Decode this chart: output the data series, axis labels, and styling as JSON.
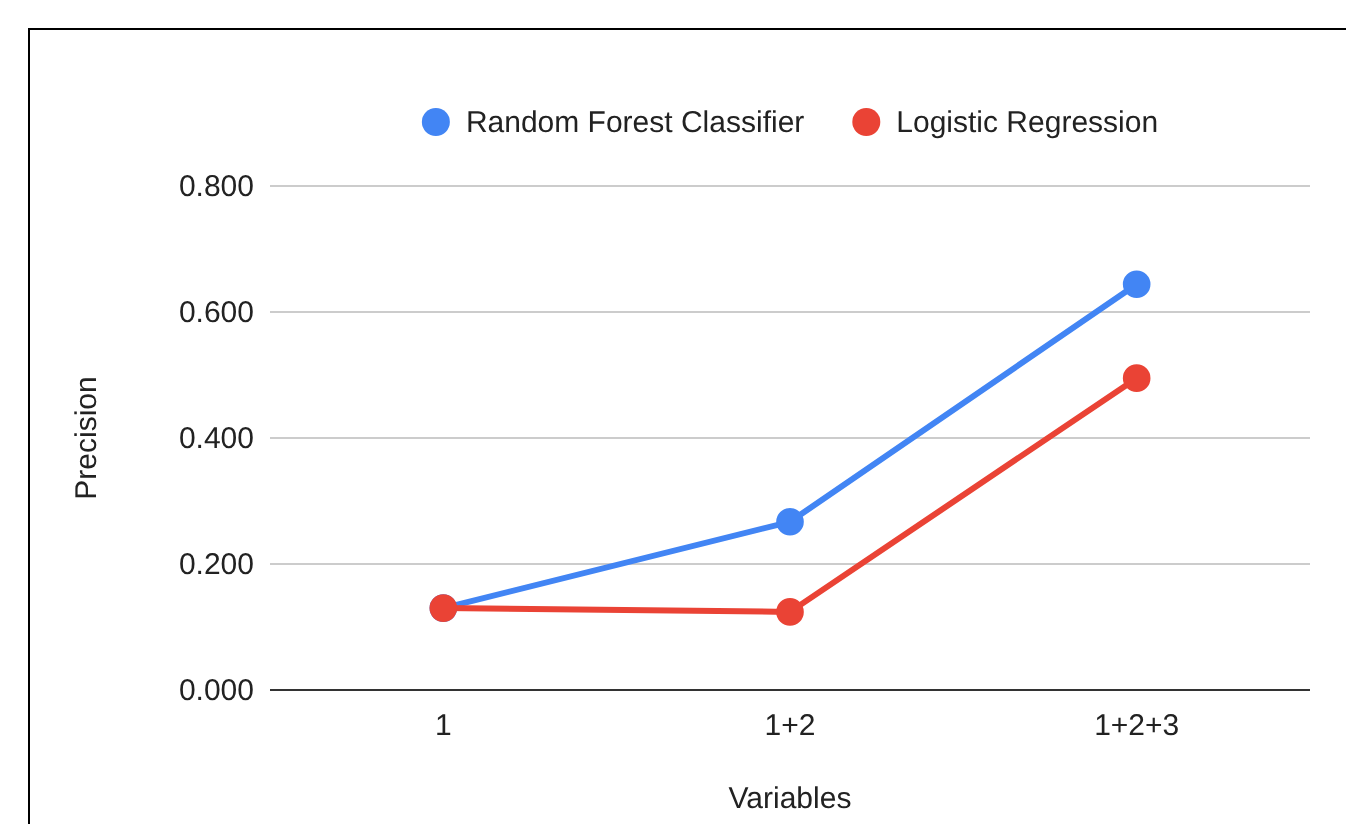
{
  "chart_data": {
    "type": "line",
    "xlabel": "Variables",
    "ylabel": "Precision",
    "categories": [
      "1",
      "1+2",
      "1+2+3"
    ],
    "series": [
      {
        "name": "Random Forest Classifier",
        "color": "#4285f4",
        "values": [
          0.13,
          0.267,
          0.644
        ]
      },
      {
        "name": "Logistic Regression",
        "color": "#ea4335",
        "values": [
          0.13,
          0.124,
          0.495
        ]
      }
    ],
    "ylim": [
      0,
      0.8
    ],
    "yticks": [
      {
        "value": 0,
        "label": "0.000"
      },
      {
        "value": 0.2,
        "label": "0.200"
      },
      {
        "value": 0.4,
        "label": "0.400"
      },
      {
        "value": 0.6,
        "label": "0.600"
      },
      {
        "value": 0.8,
        "label": "0.800"
      }
    ],
    "grid": "y",
    "legend": "top",
    "marker": "circle",
    "line_style": "solid"
  }
}
